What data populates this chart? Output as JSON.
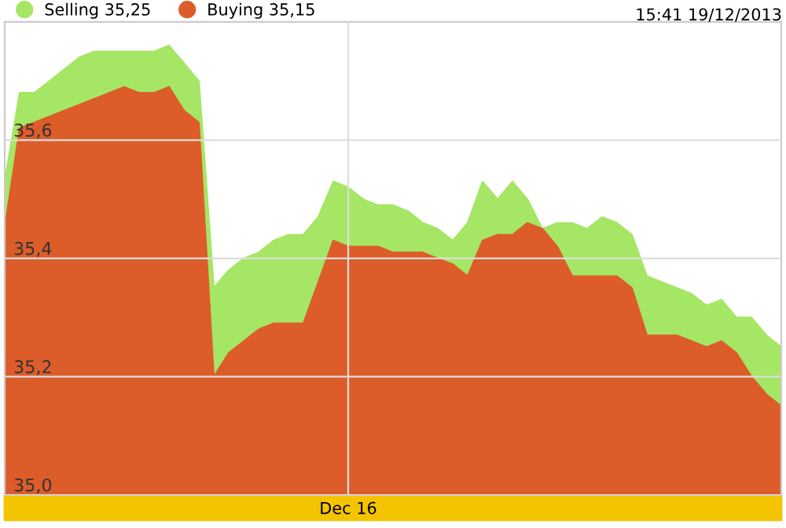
{
  "chart_data": {
    "type": "area",
    "categories": [
      null,
      null,
      null,
      null,
      null,
      null,
      null,
      null,
      null,
      null,
      null,
      null,
      null,
      null,
      null,
      null,
      null,
      null,
      null,
      null,
      null,
      null,
      null,
      "Dec 16",
      null,
      null,
      null,
      null,
      null,
      null,
      null,
      null,
      null,
      null,
      null,
      null,
      null,
      null,
      null,
      null,
      null,
      null,
      null,
      null,
      null,
      null,
      null,
      null,
      null,
      null,
      null,
      null,
      null
    ],
    "series": [
      {
        "name": "Selling 35,25",
        "color": "#a6e665",
        "values": [
          35.53,
          35.68,
          35.68,
          35.7,
          35.72,
          35.74,
          35.75,
          35.75,
          35.75,
          35.75,
          35.75,
          35.76,
          35.73,
          35.7,
          35.35,
          35.38,
          35.4,
          35.41,
          35.43,
          35.44,
          35.44,
          35.47,
          35.53,
          35.52,
          35.5,
          35.49,
          35.49,
          35.48,
          35.46,
          35.45,
          35.43,
          35.46,
          35.53,
          35.5,
          35.53,
          35.5,
          35.45,
          35.46,
          35.46,
          35.45,
          35.47,
          35.46,
          35.44,
          35.37,
          35.36,
          35.35,
          35.34,
          35.32,
          35.33,
          35.3,
          35.3,
          35.27,
          35.25
        ]
      },
      {
        "name": "Buying 35,15",
        "color": "#dc5d2a",
        "values": [
          35.45,
          35.62,
          35.63,
          35.64,
          35.65,
          35.66,
          35.67,
          35.68,
          35.69,
          35.68,
          35.68,
          35.69,
          35.65,
          35.63,
          35.2,
          35.24,
          35.26,
          35.28,
          35.29,
          35.29,
          35.29,
          35.36,
          35.43,
          35.42,
          35.42,
          35.42,
          35.41,
          35.41,
          35.41,
          35.4,
          35.39,
          35.37,
          35.43,
          35.44,
          35.44,
          35.46,
          35.45,
          35.42,
          35.37,
          35.37,
          35.37,
          35.37,
          35.35,
          35.27,
          35.27,
          35.27,
          35.26,
          35.25,
          35.26,
          35.24,
          35.2,
          35.17,
          35.15
        ]
      }
    ],
    "ylim": [
      35.0,
      35.8
    ],
    "yticks": [
      {
        "value": 35.0,
        "label": "35,0"
      },
      {
        "value": 35.2,
        "label": "35,2"
      },
      {
        "value": 35.4,
        "label": "35,4"
      },
      {
        "value": 35.6,
        "label": "35,6"
      }
    ],
    "grid": true,
    "legend": "top left",
    "annotations": [
      "15:41 19/12/2013"
    ]
  }
}
